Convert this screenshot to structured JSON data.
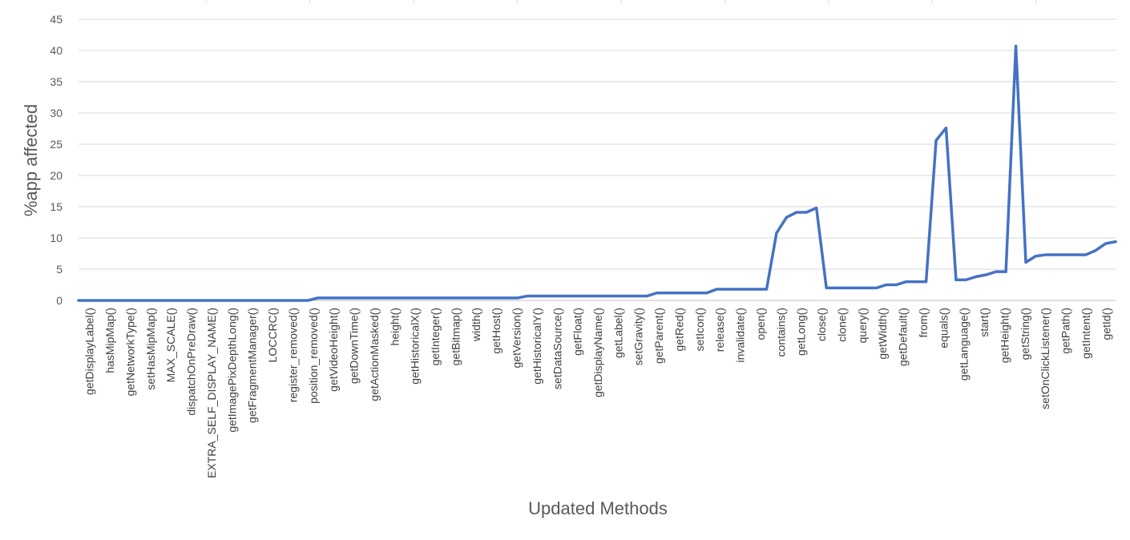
{
  "chart_data": {
    "type": "line",
    "xlabel": "Updated Methods",
    "ylabel": "%app affected",
    "ylim": [
      0,
      45
    ],
    "yticks": [
      0,
      5,
      10,
      15,
      20,
      25,
      30,
      35,
      40,
      45
    ],
    "grid": "horizontal",
    "line_color": "#4472C4",
    "grid_color": "#D9D9D9",
    "x_tick_labels": [
      "getDisplayLabel()",
      "hasMipMap()",
      "getNetworkType()",
      "setHasMipMap()",
      "MAX_SCALE()",
      "dispatchOnPreDraw()",
      "EXTRA_SELF_DISPLAY_NAME()",
      "getImagePixDepthLong()",
      "getFragmentManager()",
      "LOCCRC()",
      "register_removed()",
      "position_removed()",
      "getVideoHeight()",
      "getDownTime()",
      "getActionMasked()",
      "height()",
      "getHistoricalX()",
      "getInteger()",
      "getBitmap()",
      "width()",
      "getHost()",
      "getVersion()",
      "getHistoricalY()",
      "setDataSource()",
      "getFloat()",
      "getDisplayName()",
      "getLabel()",
      "setGravity()",
      "getParent()",
      "getRed()",
      "setIcon()",
      "release()",
      "invalidate()",
      "open()",
      "contains()",
      "getLong()",
      "close()",
      "clone()",
      "query()",
      "getWidth()",
      "getDefault()",
      "from()",
      "equals()",
      "getLanguage()",
      "start()",
      "getHeight()",
      "getString()",
      "setOnClickListener()",
      "getPath()",
      "getIntent()",
      "getId()"
    ],
    "values": [
      0,
      0,
      0,
      0,
      0,
      0,
      0,
      0,
      0,
      0,
      0,
      0,
      0,
      0,
      0,
      0,
      0,
      0,
      0,
      0,
      0,
      0,
      0,
      0,
      0.4,
      0.4,
      0.4,
      0.4,
      0.4,
      0.4,
      0.4,
      0.4,
      0.4,
      0.4,
      0.4,
      0.4,
      0.4,
      0.4,
      0.4,
      0.4,
      0.4,
      0.4,
      0.4,
      0.4,
      0.4,
      0.7,
      0.7,
      0.7,
      0.7,
      0.7,
      0.7,
      0.7,
      0.7,
      0.7,
      0.7,
      0.7,
      0.7,
      0.7,
      1.2,
      1.2,
      1.2,
      1.2,
      1.2,
      1.2,
      1.8,
      1.8,
      1.8,
      1.8,
      1.8,
      1.8,
      10.8,
      13.3,
      14.1,
      14.1,
      14.8,
      2.0,
      2.0,
      2.0,
      2.0,
      2.0,
      2.0,
      2.5,
      2.5,
      3.0,
      3.0,
      3.0,
      25.6,
      27.6,
      3.3,
      3.3,
      3.8,
      4.1,
      4.6,
      4.6,
      40.7,
      6.1,
      7.1,
      7.3,
      7.3,
      7.3,
      7.3,
      7.3,
      8.0,
      9.1,
      9.4
    ]
  }
}
